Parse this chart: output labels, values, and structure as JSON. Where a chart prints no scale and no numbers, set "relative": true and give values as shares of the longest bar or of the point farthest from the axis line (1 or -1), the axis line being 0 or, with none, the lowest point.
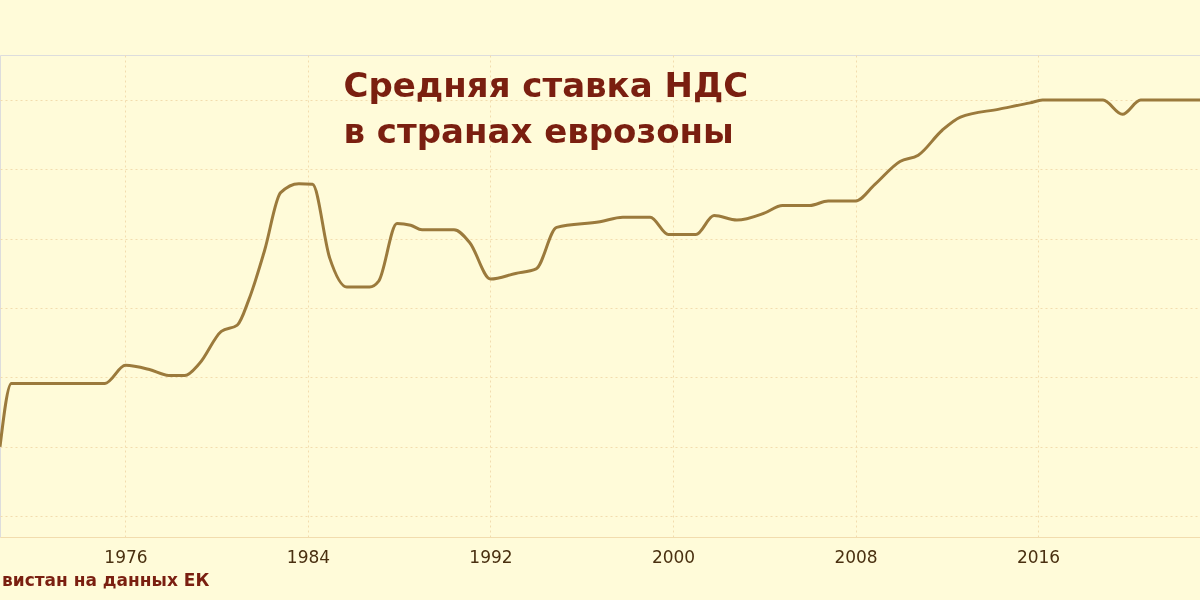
{
  "chart_data": {
    "type": "line",
    "title": "Средняя ставка НДС\nв странах еврозоны",
    "relative": true,
    "x": [
      1970.5,
      1971.0,
      1975.1,
      1976.0,
      1977.05,
      1977.9,
      1978.6,
      1979.25,
      1980.2,
      1980.9,
      1981.4,
      1982.1,
      1982.8,
      1983.6,
      1984.2,
      1984.95,
      1985.7,
      1986.7,
      1987.1,
      1987.9,
      1988.5,
      1989.0,
      1990.4,
      1991.1,
      1992.0,
      1993.1,
      1994.0,
      1994.9,
      1996.8,
      1997.8,
      1999.0,
      1999.8,
      2001.0,
      2001.8,
      2002.8,
      2004.0,
      2004.8,
      2006.0,
      2006.8,
      2008.0,
      2008.85,
      2009.95,
      2010.75,
      2011.8,
      2012.6,
      2014.3,
      2015.65,
      2016.2,
      2018.85,
      2019.7,
      2020.5,
      2022.9,
      2023.1
    ],
    "series": [
      {
        "color": "#9b7a3c",
        "values": [
          0,
          0.183,
          0.183,
          0.235,
          0.223,
          0.206,
          0.206,
          0.241,
          0.333,
          0.351,
          0.423,
          0.567,
          0.733,
          0.759,
          0.757,
          0.545,
          0.461,
          0.461,
          0.478,
          0.644,
          0.639,
          0.626,
          0.626,
          0.588,
          0.484,
          0.5,
          0.513,
          0.633,
          0.649,
          0.662,
          0.662,
          0.612,
          0.612,
          0.667,
          0.654,
          0.674,
          0.696,
          0.696,
          0.709,
          0.709,
          0.757,
          0.823,
          0.841,
          0.913,
          0.951,
          0.974,
          0.992,
          1,
          1,
          0.959,
          1,
          1,
          1
        ]
      }
    ],
    "xlim": [
      1970.5,
      2023.1
    ],
    "xticks": [
      1976,
      1984,
      1992,
      2000,
      2008,
      2016
    ],
    "grid": true,
    "marker": "none",
    "line_style": "solid",
    "annotations": [
      "вистан на данных ЕК"
    ]
  }
}
